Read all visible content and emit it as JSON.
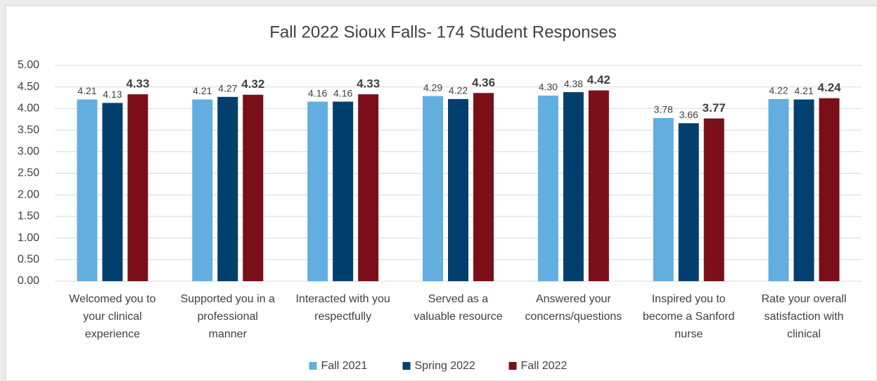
{
  "chart_data": {
    "type": "bar",
    "title": "Fall 2022 Sioux Falls-  174 Student Responses",
    "categories": [
      [
        "Welcomed you to",
        "your clinical",
        "experience"
      ],
      [
        "Supported you in a",
        "professional",
        "manner"
      ],
      [
        "Interacted with you",
        "respectfully"
      ],
      [
        "Served as a",
        "valuable resource"
      ],
      [
        "Answered your",
        "concerns/questions"
      ],
      [
        "Inspired you to",
        "become a Sanford",
        "nurse"
      ],
      [
        "Rate your overall",
        "satisfaction with",
        "clinical"
      ]
    ],
    "series": [
      {
        "name": "Fall 2021",
        "color": "#62aee0",
        "values": [
          4.21,
          4.21,
          4.16,
          4.29,
          4.3,
          3.78,
          4.22
        ],
        "value_labels": [
          "4.21",
          "4.21",
          "4.16",
          "4.29",
          "4.30",
          "3.78",
          "4.22"
        ]
      },
      {
        "name": "Spring 2022",
        "color": "#003f6e",
        "values": [
          4.13,
          4.27,
          4.16,
          4.22,
          4.38,
          3.66,
          4.21
        ],
        "value_labels": [
          "4.13",
          "4.27",
          "4.16",
          "4.22",
          "4.38",
          "3.66",
          "4.21"
        ]
      },
      {
        "name": "Fall 2022",
        "color": "#7b0f18",
        "values": [
          4.33,
          4.32,
          4.33,
          4.36,
          4.42,
          3.77,
          4.24
        ],
        "value_labels": [
          "4.33",
          "4.32",
          "4.33",
          "4.36",
          "4.42",
          "3.77",
          "4.24"
        ],
        "bold_labels": true
      }
    ],
    "ylim": [
      0,
      5
    ],
    "yticks": [
      {
        "value": 0,
        "label": "0.00"
      },
      {
        "value": 0.5,
        "label": "0.50"
      },
      {
        "value": 1,
        "label": "1.00"
      },
      {
        "value": 1.5,
        "label": "1.50"
      },
      {
        "value": 2,
        "label": "2.00"
      },
      {
        "value": 2.5,
        "label": "2.50"
      },
      {
        "value": 3,
        "label": "3.00"
      },
      {
        "value": 3.5,
        "label": "3.50"
      },
      {
        "value": 4,
        "label": "4.00"
      },
      {
        "value": 4.5,
        "label": "4.50"
      },
      {
        "value": 5,
        "label": "5.00"
      }
    ],
    "grid": true,
    "legend": "bottom"
  }
}
